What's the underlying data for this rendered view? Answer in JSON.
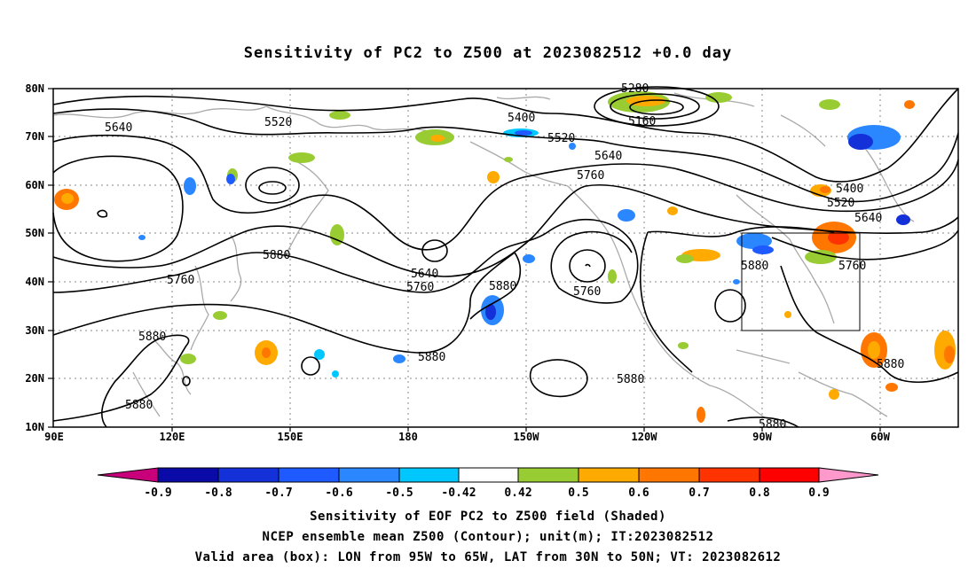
{
  "title": "Sensitivity of PC2 to Z500 at 2023082512 +0.0 day",
  "map": {
    "lon_labels": [
      "90E",
      "120E",
      "150E",
      "180",
      "150W",
      "120W",
      "90W",
      "60W"
    ],
    "lat_labels": [
      "80N",
      "70N",
      "60N",
      "50N",
      "40N",
      "30N",
      "20N",
      "10N"
    ],
    "contour_labels": [
      "5280",
      "5160",
      "5400",
      "5520",
      "5640",
      "5520",
      "5640",
      "5760",
      "5760",
      "5640",
      "5760",
      "5880",
      "5880",
      "5760",
      "5880",
      "5880",
      "5880",
      "5400",
      "5520",
      "5640",
      "5880",
      "5760",
      "5880",
      "5880",
      "5880"
    ],
    "valid_box": "95W-65W, 30N-50N"
  },
  "colorbar": {
    "labels": [
      "-0.9",
      "-0.8",
      "-0.7",
      "-0.6",
      "-0.5",
      "-0.42",
      "0.42",
      "0.5",
      "0.6",
      "0.7",
      "0.8",
      "0.9"
    ],
    "colors": [
      "#c8007a",
      "#0a0aa8",
      "#1430d8",
      "#1e5aff",
      "#2b87ff",
      "#00c8ff",
      "#ffffff",
      "#99cc33",
      "#ffaa00",
      "#ff7700",
      "#ff3300",
      "#ff0000",
      "#ff99cc"
    ]
  },
  "footer": {
    "line1": "Sensitivity of EOF PC2 to Z500 field (Shaded)",
    "line2": "NCEP ensemble mean Z500 (Contour); unit(m); IT:2023082512",
    "line3": "Valid area (box): LON from 95W to 65W, LAT from 30N to 50N; VT: 2023082612"
  }
}
